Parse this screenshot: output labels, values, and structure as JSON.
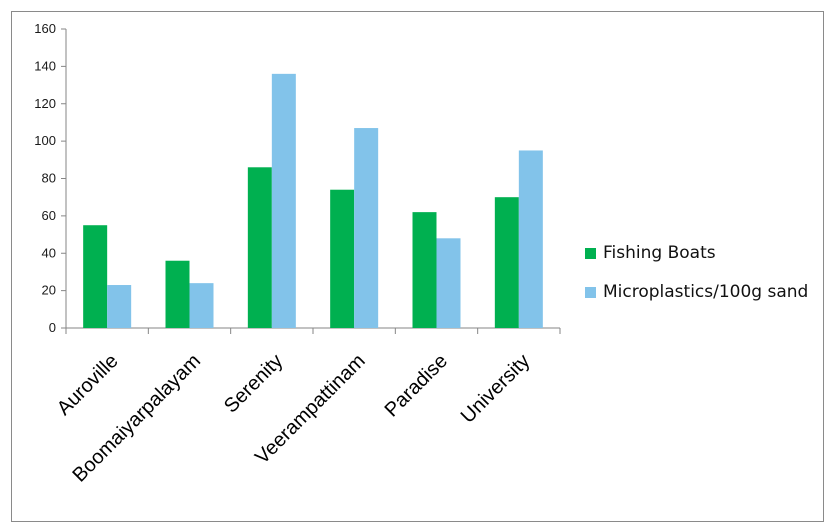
{
  "chart_data": {
    "type": "bar",
    "categories": [
      "Auroville",
      "Boomaiyarpalayam",
      "Serenity",
      "Veerampattinam",
      "Paradise",
      "University"
    ],
    "series": [
      {
        "name": "Fishing Boats",
        "values": [
          55,
          36,
          86,
          74,
          62,
          70
        ],
        "color": "#00b050"
      },
      {
        "name": "Microplastics/100g sand",
        "values": [
          23,
          24,
          136,
          107,
          48,
          95
        ],
        "color": "#82c3ea"
      }
    ],
    "ylim": [
      0,
      160
    ],
    "yticks": [
      "0",
      "20",
      "40",
      "60",
      "80",
      "100",
      "120",
      "140",
      "160"
    ],
    "title": "",
    "xlabel": "",
    "ylabel": "",
    "grid": false,
    "legend_position": "right"
  }
}
